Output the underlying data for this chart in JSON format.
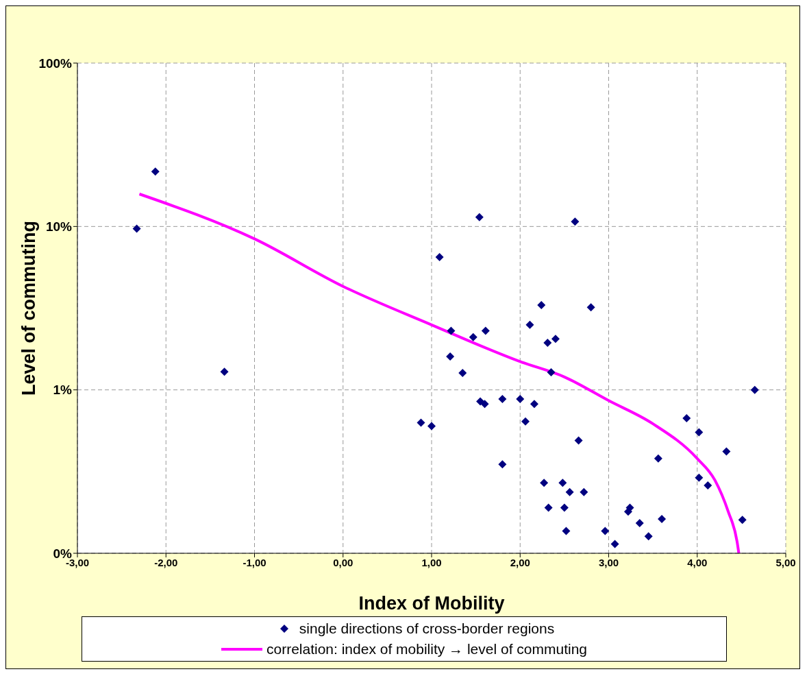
{
  "chart_data": {
    "type": "scatter",
    "xlabel": "Index of Mobility",
    "ylabel": "Level of commuting",
    "log": "y",
    "grid": true,
    "legend": "bottom",
    "xlim": [
      -3,
      5
    ],
    "xticks": [
      {
        "value": -3,
        "label": "-3,00"
      },
      {
        "value": -2,
        "label": "-2,00"
      },
      {
        "value": -1,
        "label": "-1,00"
      },
      {
        "value": 0,
        "label": "0,00"
      },
      {
        "value": 1,
        "label": "1,00"
      },
      {
        "value": 2,
        "label": "2,00"
      },
      {
        "value": 3,
        "label": "3,00"
      },
      {
        "value": 4,
        "label": "4,00"
      },
      {
        "value": 5,
        "label": "5,00"
      }
    ],
    "ylim": [
      0.1,
      100
    ],
    "yticks": [
      {
        "value": 0.1,
        "label": "0%"
      },
      {
        "value": 1,
        "label": "1%"
      },
      {
        "value": 10,
        "label": "10%"
      },
      {
        "value": 100,
        "label": "100%"
      }
    ],
    "series": [
      {
        "name": "single directions of cross-border regions",
        "marker": "diamond",
        "color": "#000080",
        "x": [
          -2.33,
          -2.12,
          -1.34,
          0.88,
          1.0,
          1.09,
          1.54,
          1.22,
          1.21,
          1.35,
          1.47,
          1.61,
          1.55,
          1.6,
          1.8,
          1.8,
          2.0,
          2.06,
          2.11,
          2.16,
          2.24,
          2.27,
          2.32,
          2.31,
          2.4,
          2.35,
          2.48,
          2.5,
          2.52,
          2.56,
          2.62,
          2.66,
          2.72,
          2.8,
          2.96,
          3.07,
          3.22,
          3.24,
          3.35,
          3.45,
          3.56,
          3.6,
          3.88,
          4.02,
          4.02,
          4.12,
          4.33,
          4.51,
          4.65
        ],
        "values": [
          9.7,
          21.7,
          1.29,
          0.63,
          0.6,
          6.5,
          11.4,
          2.3,
          1.6,
          1.27,
          2.1,
          2.3,
          0.85,
          0.82,
          0.88,
          0.35,
          0.88,
          0.64,
          2.5,
          0.82,
          3.3,
          0.27,
          0.19,
          1.94,
          2.05,
          1.28,
          0.27,
          0.19,
          0.137,
          0.237,
          10.7,
          0.49,
          0.237,
          3.2,
          0.137,
          0.114,
          0.18,
          0.19,
          0.153,
          0.127,
          0.38,
          0.162,
          0.67,
          0.55,
          0.29,
          0.26,
          0.42,
          0.16,
          1.0
        ]
      },
      {
        "name": "correlation: index of mobility → level of commuting",
        "type": "line",
        "marker": "none",
        "line_style": "solid",
        "color": "#ff00ff",
        "x": [
          -2.3,
          -1,
          0,
          1,
          2,
          2.5,
          3,
          3.5,
          4,
          4.2,
          4.35,
          4.45,
          4.47
        ],
        "values": [
          15.8,
          8.4,
          4.3,
          2.5,
          1.49,
          1.2,
          0.86,
          0.62,
          0.38,
          0.28,
          0.18,
          0.118,
          0.1
        ]
      }
    ]
  }
}
